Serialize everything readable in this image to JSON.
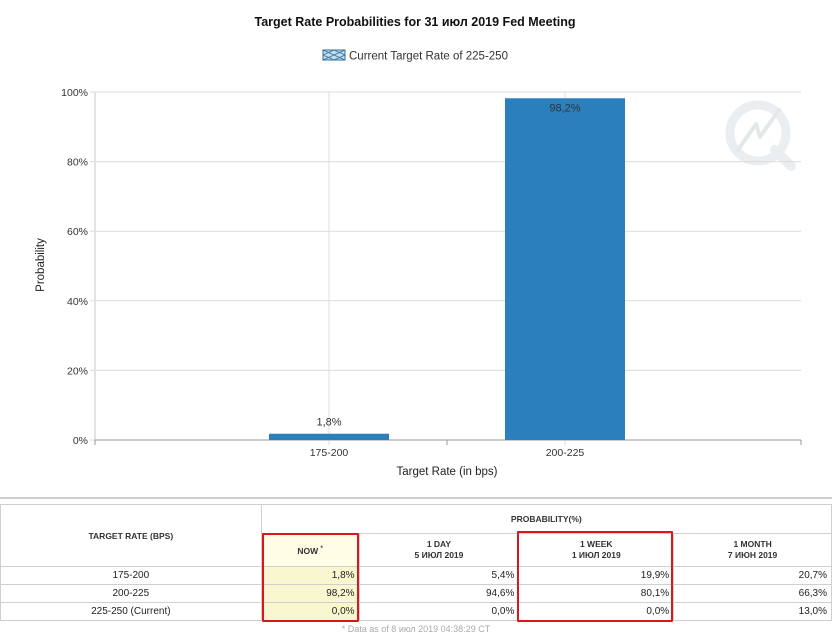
{
  "chart_data": {
    "type": "bar",
    "title": "Target Rate Probabilities for 31 июл 2019 Fed Meeting",
    "legend": {
      "label": "Current Target Rate of 225-250",
      "placement": "top-center"
    },
    "categories": [
      "175-200",
      "200-225"
    ],
    "values": [
      1.8,
      98.2
    ],
    "data_labels": [
      "1,8%",
      "98,2%"
    ],
    "xlabel": "Target Rate (in bps)",
    "ylabel": "Probability",
    "ylim": [
      0,
      100
    ],
    "yticks": [
      0,
      20,
      40,
      60,
      80,
      100
    ],
    "ytick_labels": [
      "0%",
      "20%",
      "40%",
      "60%",
      "80%",
      "100%"
    ],
    "grid": true,
    "bar_color": "#2b7fbd"
  },
  "table": {
    "rate_header": "TARGET RATE (BPS)",
    "prob_header": "PROBABILITY(%)",
    "columns": [
      {
        "line1": "NOW",
        "line2": ""
      },
      {
        "line1": "1 DAY",
        "line2": "5 ИЮЛ 2019"
      },
      {
        "line1": "1 WEEK",
        "line2": "1 ИЮЛ 2019"
      },
      {
        "line1": "1 MONTH",
        "line2": "7 ИЮН 2019"
      }
    ],
    "now_marker": "*",
    "rows": [
      {
        "rate": "175-200",
        "values": [
          "1,8%",
          "5,4%",
          "19,9%",
          "20,7%"
        ]
      },
      {
        "rate": "200-225",
        "values": [
          "98,2%",
          "94,6%",
          "80,1%",
          "66,3%"
        ]
      },
      {
        "rate": "225-250 (Current)",
        "values": [
          "0,0%",
          "0,0%",
          "0,0%",
          "13,0%"
        ]
      }
    ],
    "footnote": "* Data as of 8 июл 2019 04:38:29 CT"
  },
  "colors": {
    "highlight": "#e0151b",
    "now_bg": "#f9f7cf",
    "grid": "#d9d9d9"
  }
}
